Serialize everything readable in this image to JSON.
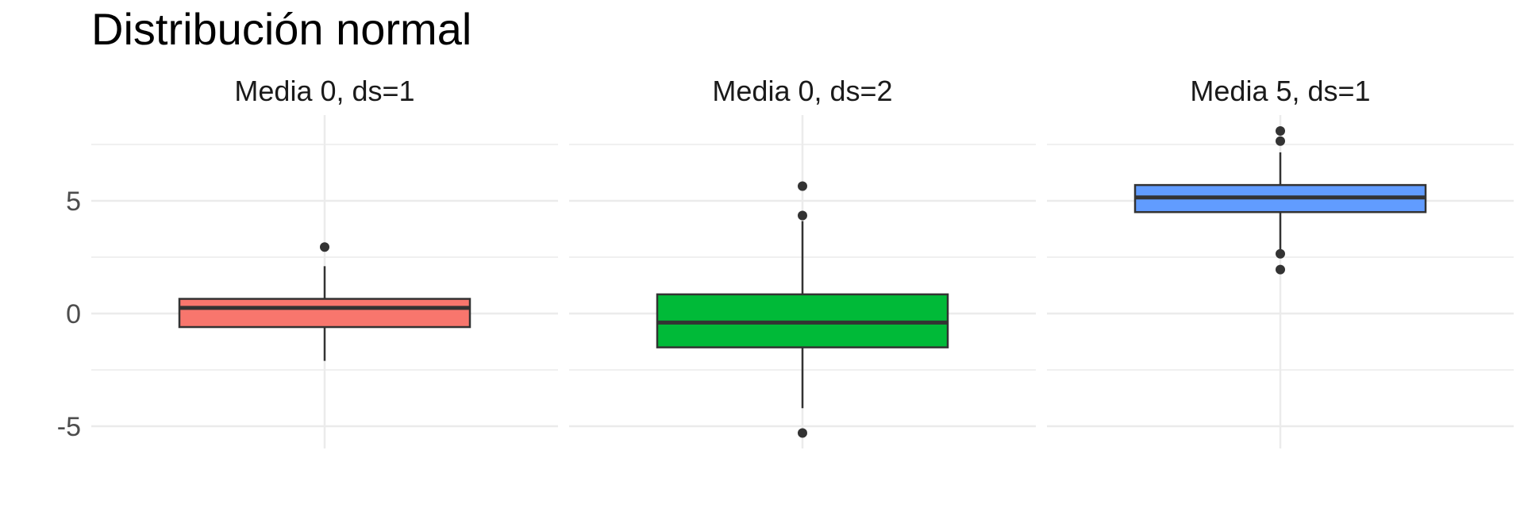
{
  "chart_data": {
    "type": "boxplot",
    "title": "Distribución normal",
    "xlabel": "",
    "ylabel": "",
    "ylim": [
      -6,
      8.5
    ],
    "yticks": [
      -5,
      0,
      5
    ],
    "ytick_labels": [
      "-5",
      "0",
      "5"
    ],
    "grid": true,
    "panels": [
      {
        "label": "Media 0, ds=1",
        "color": "#F8766D",
        "q1": -0.6,
        "median": 0.25,
        "q3": 0.65,
        "whisker_low": -2.1,
        "whisker_high": 2.1,
        "outliers": [
          2.95
        ]
      },
      {
        "label": "Media 0, ds=2",
        "color": "#00BA38",
        "q1": -1.5,
        "median": -0.4,
        "q3": 0.85,
        "whisker_low": -4.2,
        "whisker_high": 4.1,
        "outliers": [
          5.65,
          4.35,
          -5.3
        ]
      },
      {
        "label": "Media 5, ds=1",
        "color": "#619CFF",
        "q1": 4.5,
        "median": 5.15,
        "q3": 5.7,
        "whisker_low": 2.8,
        "whisker_high": 7.15,
        "outliers": [
          8.1,
          7.65,
          2.65,
          1.95
        ]
      }
    ]
  }
}
